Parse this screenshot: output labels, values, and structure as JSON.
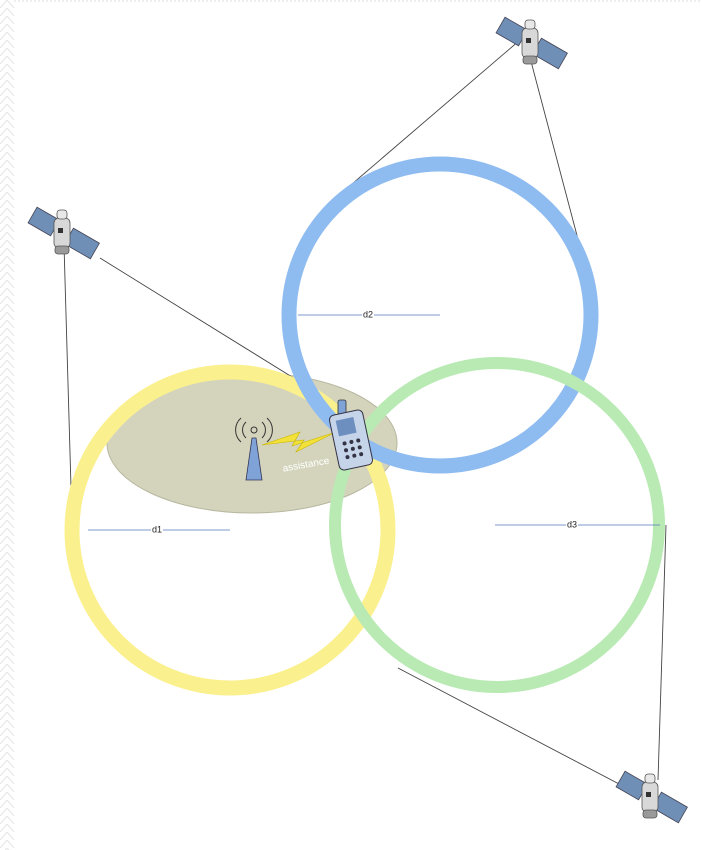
{
  "labels": {
    "d1": "d1",
    "d2": "d2",
    "d3": "d3",
    "assistance": "assistance"
  }
}
